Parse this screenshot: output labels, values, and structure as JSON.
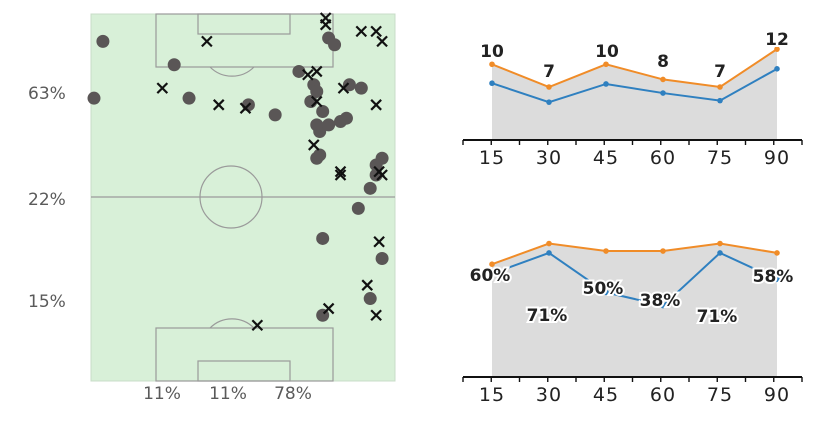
{
  "chart_data": [
    {
      "type": "scatter",
      "title": "",
      "description": "Football pitch shot/event map (half pitch)",
      "row_labels": [
        "63%",
        "22%",
        "15%"
      ],
      "column_labels": [
        "11%",
        "11%",
        "78%"
      ],
      "pitch_color": "#d8f0d8",
      "line_color": "#999999",
      "dot_color": "#5a5656",
      "cross_color": "#111111",
      "x_range": [
        0,
        100
      ],
      "y_range": [
        0,
        100
      ],
      "series": [
        {
          "marker": "dot",
          "points": [
            [
              3,
              7
            ],
            [
              0,
              24
            ],
            [
              27,
              14
            ],
            [
              32,
              24
            ],
            [
              79,
              6
            ],
            [
              81,
              8
            ],
            [
              69,
              16
            ],
            [
              74,
              20
            ],
            [
              75,
              22
            ],
            [
              73,
              25
            ],
            [
              77,
              28
            ],
            [
              76,
              34
            ],
            [
              75,
              32
            ],
            [
              79,
              32
            ],
            [
              86,
              20
            ],
            [
              90,
              21
            ],
            [
              85,
              30
            ],
            [
              83,
              31
            ],
            [
              76,
              41
            ],
            [
              75,
              42
            ],
            [
              97,
              42
            ],
            [
              95,
              44
            ],
            [
              95,
              47
            ],
            [
              93,
              51
            ],
            [
              89,
              57
            ],
            [
              77,
              66
            ],
            [
              97,
              72
            ],
            [
              93,
              84
            ],
            [
              77,
              89
            ],
            [
              52,
              26
            ],
            [
              61,
              29
            ]
          ]
        },
        {
          "marker": "cross",
          "points": [
            [
              78,
              0
            ],
            [
              78,
              2
            ],
            [
              95,
              4
            ],
            [
              97,
              7
            ],
            [
              90,
              4
            ],
            [
              38,
              7
            ],
            [
              75,
              16
            ],
            [
              72,
              17
            ],
            [
              23,
              21
            ],
            [
              42,
              26
            ],
            [
              51,
              27
            ],
            [
              75,
              25
            ],
            [
              95,
              26
            ],
            [
              84,
              21
            ],
            [
              74,
              38
            ],
            [
              83,
              46
            ],
            [
              83,
              47
            ],
            [
              96,
              46
            ],
            [
              97,
              47
            ],
            [
              96,
              67
            ],
            [
              92,
              80
            ],
            [
              79,
              87
            ],
            [
              95,
              89
            ],
            [
              55,
              92
            ]
          ]
        }
      ]
    },
    {
      "type": "line",
      "x": [
        15,
        30,
        45,
        60,
        75,
        90
      ],
      "ylim": [
        0,
        14
      ],
      "series": [
        {
          "values": [
            10,
            7,
            10,
            8,
            7,
            12
          ],
          "color": "#f08c28",
          "labels": [
            "10",
            "7",
            "10",
            "8",
            "7",
            "12"
          ]
        },
        {
          "values": [
            7.5,
            5.0,
            7.4,
            6.2,
            5.2,
            9.4
          ],
          "color": "#2f80c0"
        }
      ],
      "area_color": "#dcdcdc"
    },
    {
      "type": "line",
      "x": [
        15,
        30,
        45,
        60,
        75,
        90
      ],
      "ylim": [
        0,
        100
      ],
      "series": [
        {
          "values": [
            60,
            71,
            67,
            67,
            71,
            66
          ],
          "color": "#f08c28"
        },
        {
          "values": [
            55,
            66,
            45,
            38,
            66,
            52
          ],
          "color": "#2f80c0"
        }
      ],
      "labels": [
        "60%",
        "71%",
        "50%",
        "38%",
        "71%",
        "58%"
      ],
      "area_color": "#dcdcdc"
    }
  ]
}
